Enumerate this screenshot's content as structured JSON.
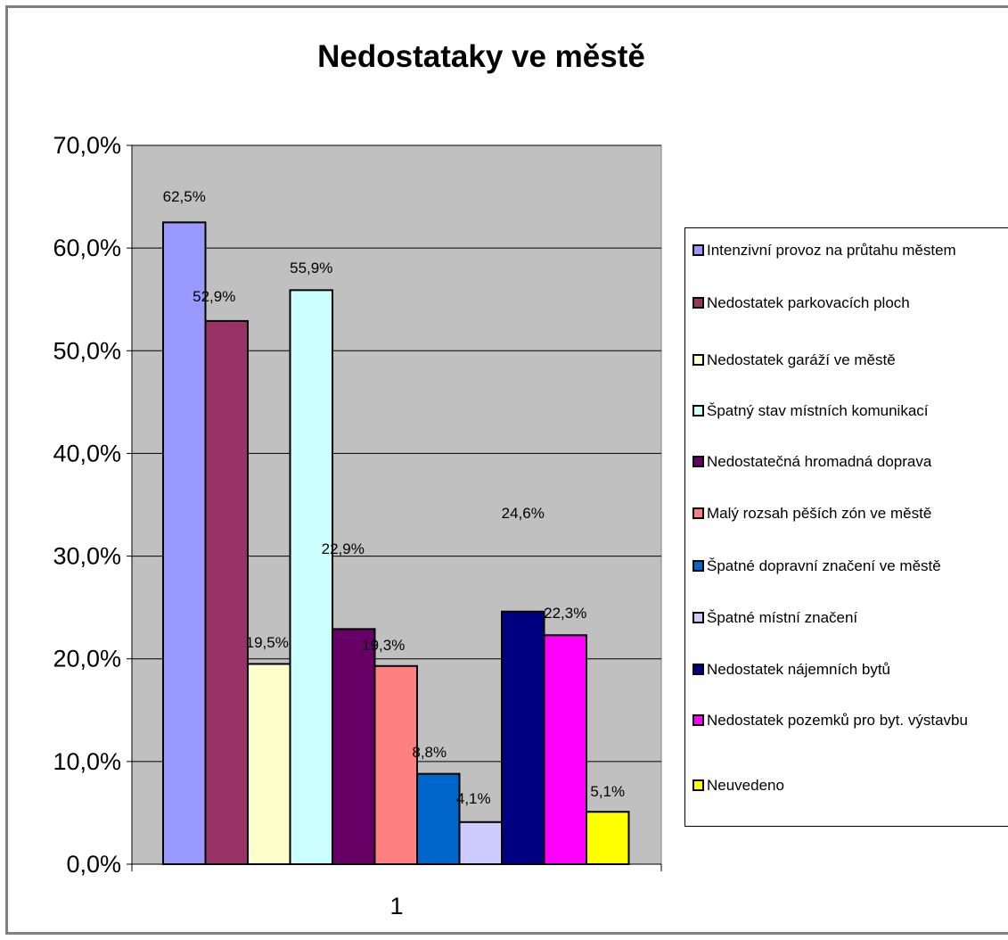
{
  "chart_data": {
    "type": "bar",
    "title": "Nedostataky ve městě",
    "categories": [
      "1"
    ],
    "ylim": [
      0,
      70
    ],
    "y_ticks": [
      "0,0%",
      "10,0%",
      "20,0%",
      "30,0%",
      "40,0%",
      "50,0%",
      "60,0%",
      "70,0%"
    ],
    "grid": true,
    "legend_position": "right",
    "plot_background": "#C0C0C0",
    "series": [
      {
        "name": "Intenzivní provoz na průtahu městem",
        "value": 62.5,
        "label": "62,5%",
        "color": "#9999FF"
      },
      {
        "name": "Nedostatek parkovacích ploch",
        "value": 52.9,
        "label": "52,9%",
        "color": "#993366"
      },
      {
        "name": "Nedostatek garáží ve městě",
        "value": 19.5,
        "label": "19,5%",
        "color": "#FFFFCC"
      },
      {
        "name": "Špatný stav místních komunikací",
        "value": 55.9,
        "label": "55,9%",
        "color": "#CCFFFF"
      },
      {
        "name": "Nedostatečná hromadná doprava",
        "value": 22.9,
        "label": "22,9%",
        "color": "#660066"
      },
      {
        "name": "Malý rozsah pěších zón ve městě",
        "value": 19.3,
        "label": "19,3%",
        "color": "#FF8080"
      },
      {
        "name": "Špatné dopravní značení ve městě",
        "value": 8.8,
        "label": "8,8%",
        "color": "#0066CC"
      },
      {
        "name": "Špatné místní značení",
        "value": 4.1,
        "label": "4,1%",
        "color": "#CCCCFF"
      },
      {
        "name": "Nedostatek nájemních bytů",
        "value": 24.6,
        "label": "24,6%",
        "color": "#000080"
      },
      {
        "name": "Nedostatek pozemků pro byt. výstavbu",
        "value": 22.3,
        "label": "22,3%",
        "color": "#FF00FF"
      },
      {
        "name": "Neuvedeno",
        "value": 5.1,
        "label": "5,1%",
        "color": "#FFFF00"
      }
    ]
  }
}
